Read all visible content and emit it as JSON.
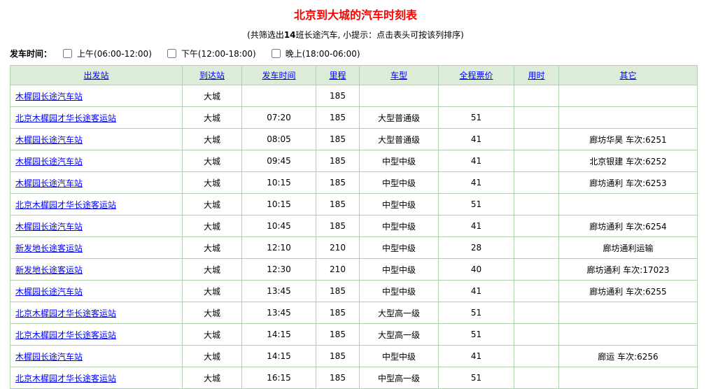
{
  "page": {
    "title": "北京到大城的汽车时刻表",
    "subtitle_prefix": "(共筛选出",
    "subtitle_count": "14",
    "subtitle_suffix": "班长途汽车, 小提示：点击表头可按该列排序)"
  },
  "filter": {
    "label": "发车时间：",
    "options": [
      {
        "label": "上午(06:00-12:00)",
        "checked": false
      },
      {
        "label": "下午(12:00-18:00)",
        "checked": false
      },
      {
        "label": "晚上(18:00-06:00)",
        "checked": false
      }
    ]
  },
  "table": {
    "headers": [
      "出发站",
      "到达站",
      "发车时间",
      "里程",
      "车型",
      "全程票价",
      "用时",
      "其它"
    ],
    "rows": [
      [
        "木樨园长途汽车站",
        "大城",
        "",
        "185",
        "",
        "",
        "",
        ""
      ],
      [
        "北京木樨园才华长途客运站",
        "大城",
        "07:20",
        "185",
        "大型普通级",
        "51",
        "",
        ""
      ],
      [
        "木樨园长途汽车站",
        "大城",
        "08:05",
        "185",
        "大型普通级",
        "41",
        "",
        "廊坊华昊 车次:6251"
      ],
      [
        "木樨园长途汽车站",
        "大城",
        "09:45",
        "185",
        "中型中级",
        "41",
        "",
        "北京银建 车次:6252"
      ],
      [
        "木樨园长途汽车站",
        "大城",
        "10:15",
        "185",
        "中型中级",
        "41",
        "",
        "廊坊通利 车次:6253"
      ],
      [
        "北京木樨园才华长途客运站",
        "大城",
        "10:15",
        "185",
        "中型中级",
        "51",
        "",
        ""
      ],
      [
        "木樨园长途汽车站",
        "大城",
        "10:45",
        "185",
        "中型中级",
        "41",
        "",
        "廊坊通利 车次:6254"
      ],
      [
        "新发地长途客运站",
        "大城",
        "12:10",
        "210",
        "中型中级",
        "28",
        "",
        "廊坊通利运输"
      ],
      [
        "新发地长途客运站",
        "大城",
        "12:30",
        "210",
        "中型中级",
        "40",
        "",
        "廊坊通利 车次:17023"
      ],
      [
        "木樨园长途汽车站",
        "大城",
        "13:45",
        "185",
        "中型中级",
        "41",
        "",
        "廊坊通利 车次:6255"
      ],
      [
        "北京木樨园才华长途客运站",
        "大城",
        "13:45",
        "185",
        "大型高一级",
        "51",
        "",
        ""
      ],
      [
        "北京木樨园才华长途客运站",
        "大城",
        "14:15",
        "185",
        "大型高一级",
        "51",
        "",
        ""
      ],
      [
        "木樨园长途汽车站",
        "大城",
        "14:15",
        "185",
        "中型中级",
        "41",
        "",
        "廊运 车次:6256"
      ],
      [
        "北京木樨园才华长途客运站",
        "大城",
        "16:15",
        "185",
        "中型高一级",
        "51",
        "",
        ""
      ]
    ]
  },
  "colors": {
    "title_red": "#ff0000",
    "link_blue": "#0000ff",
    "table_border_green": "#b2d0b2",
    "header_bg_green": "#dcecd8",
    "page_bg": "#ffffff"
  }
}
